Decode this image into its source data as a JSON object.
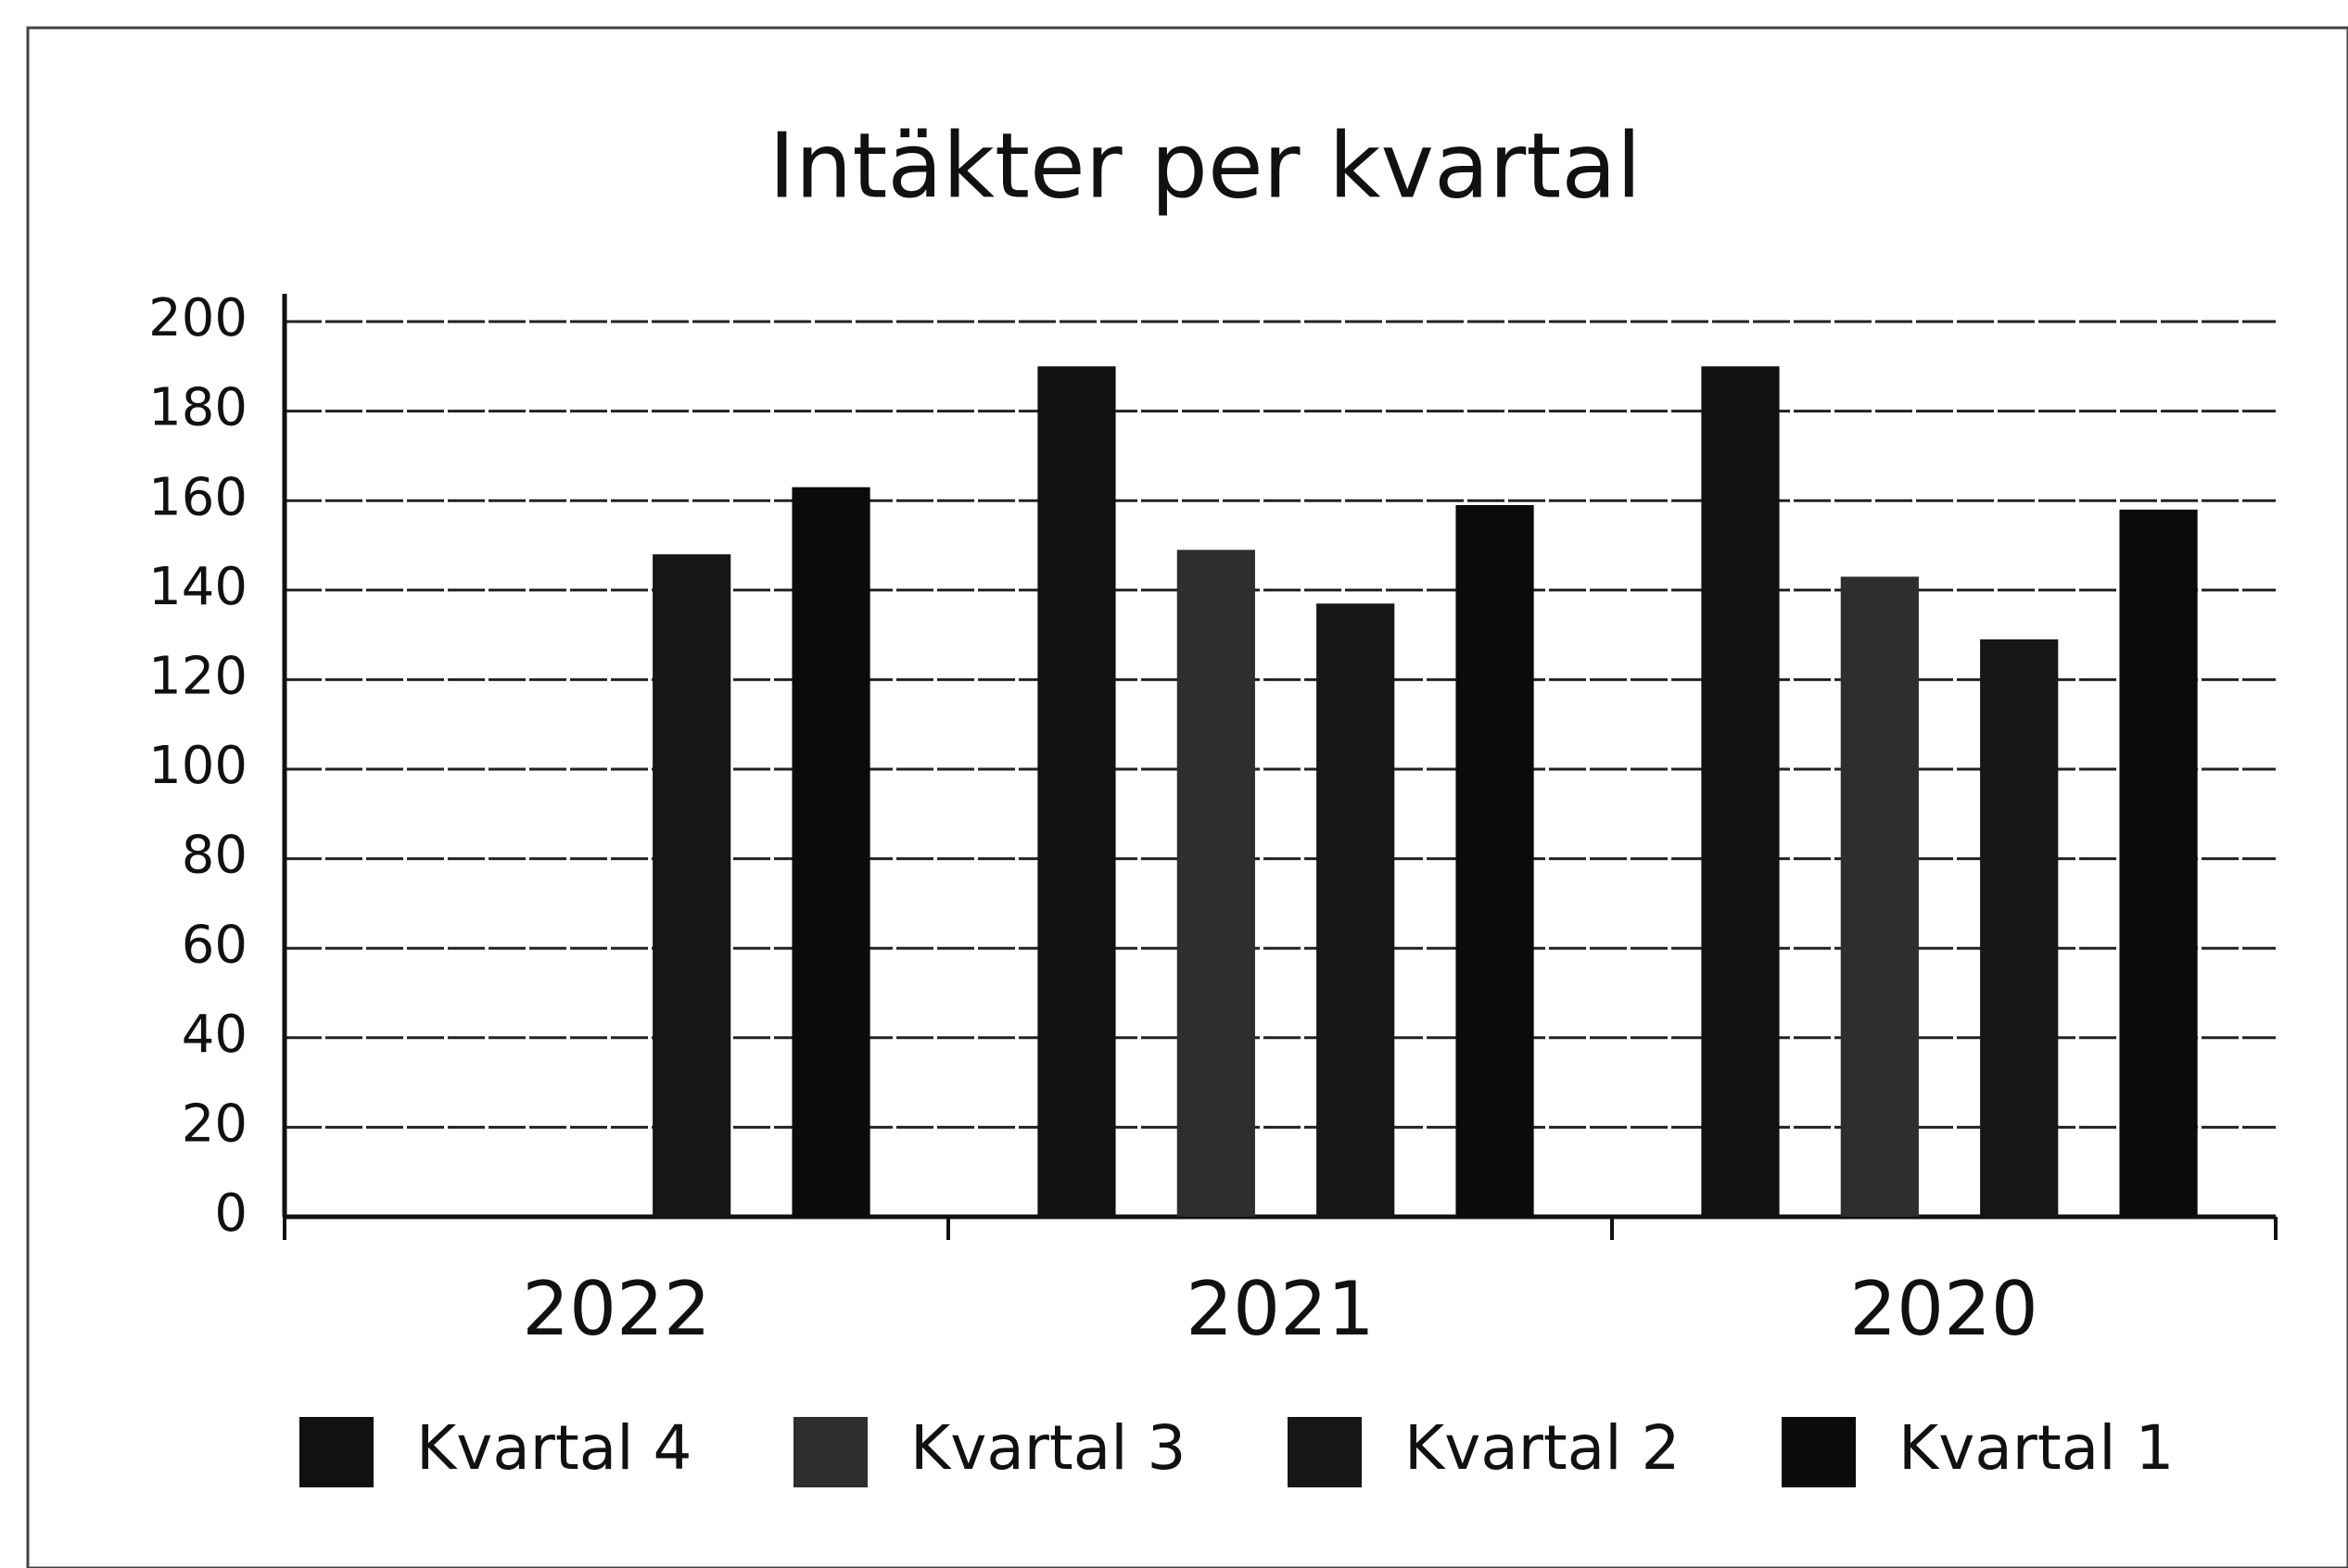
{
  "chart_data": {
    "type": "bar",
    "title": "Intäkter per kvartal",
    "categories": [
      "2022",
      "2021",
      "2020"
    ],
    "series": [
      {
        "name": "Kvartal 4",
        "color": "#111111",
        "values": [
          null,
          190,
          190
        ]
      },
      {
        "name": "Kvartal 3",
        "color": "#2e2e2e",
        "values": [
          null,
          149,
          143
        ]
      },
      {
        "name": "Kvartal 2",
        "color": "#161616",
        "values": [
          148,
          137,
          129
        ]
      },
      {
        "name": "Kvartal 1",
        "color": "#0b0b0b",
        "values": [
          163,
          159,
          158
        ]
      }
    ],
    "ylim": [
      0,
      200
    ],
    "yticks": [
      0,
      20,
      40,
      60,
      80,
      100,
      120,
      140,
      160,
      180,
      200
    ],
    "grid": true,
    "legend": "bottom"
  }
}
